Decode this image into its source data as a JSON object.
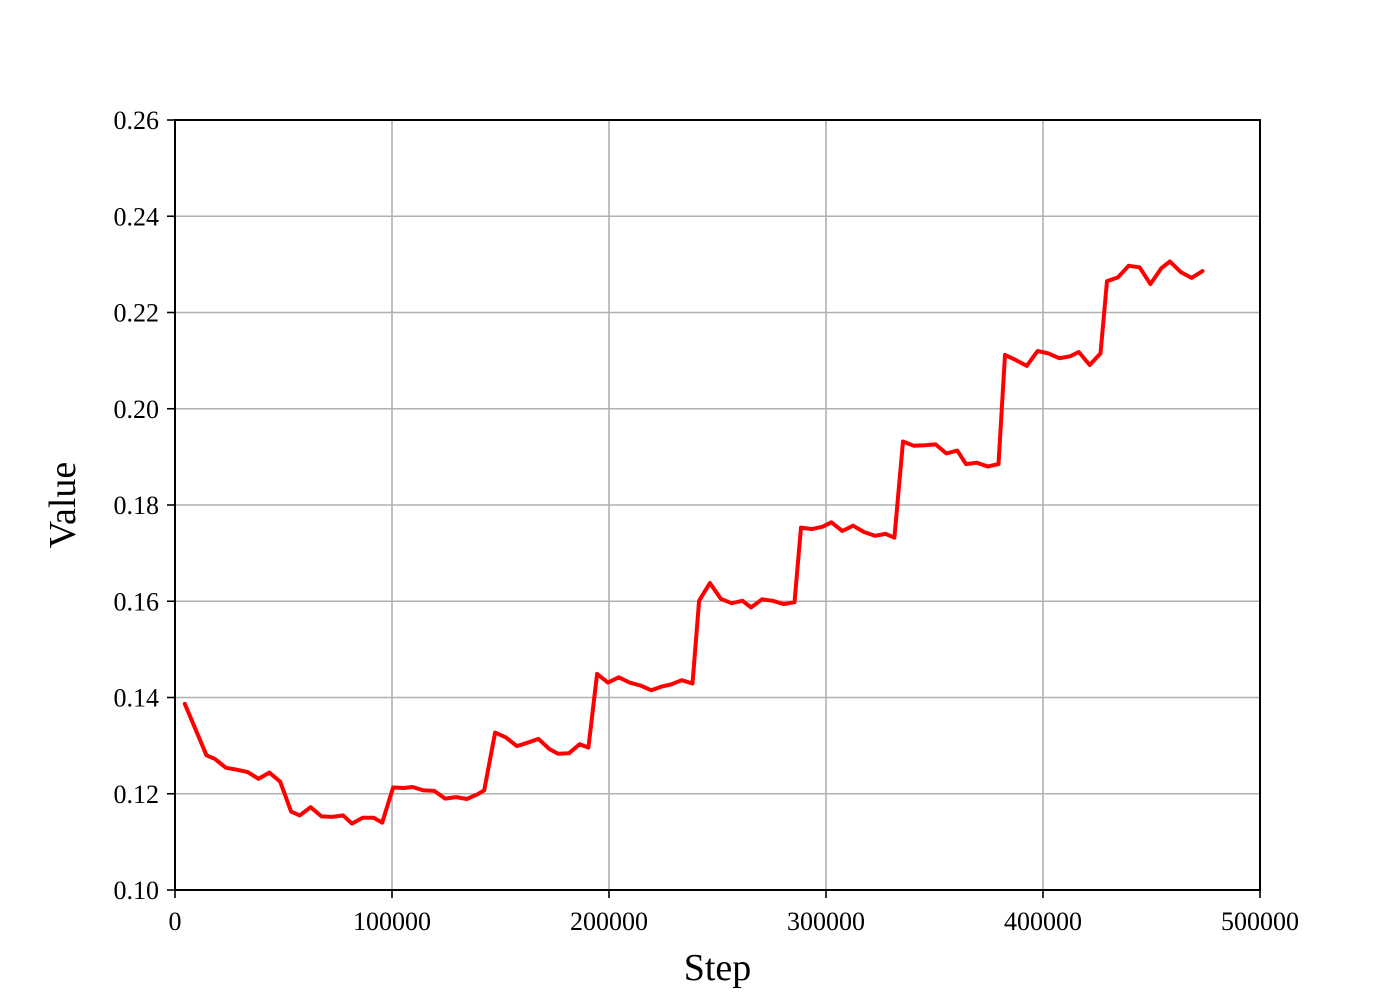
{
  "chart_data": {
    "type": "line",
    "title": "",
    "xlabel": "Step",
    "ylabel": "Value",
    "xlim": [
      0,
      500000
    ],
    "ylim": [
      0.1,
      0.26
    ],
    "xticks": [
      0,
      100000,
      200000,
      300000,
      400000,
      500000
    ],
    "yticks": [
      0.1,
      0.12,
      0.14,
      0.16,
      0.18,
      0.2,
      0.22,
      0.24,
      0.26
    ],
    "xtick_labels": [
      "0",
      "100000",
      "200000",
      "300000",
      "400000",
      "500000"
    ],
    "ytick_labels": [
      "0.10",
      "0.12",
      "0.14",
      "0.16",
      "0.18",
      "0.20",
      "0.22",
      "0.24",
      "0.26"
    ],
    "grid": true,
    "series": [
      {
        "color": "#ff0000",
        "x": [
          4500,
          14500,
          18500,
          23500,
          28500,
          33500,
          38500,
          43500,
          48500,
          53500,
          57500,
          62500,
          67500,
          72500,
          77500,
          81500,
          86500,
          91500,
          95500,
          100500,
          105500,
          109500,
          114500,
          119500,
          124500,
          129500,
          134500,
          139500,
          142500,
          147500,
          152500,
          157500,
          162500,
          167500,
          172500,
          176500,
          181500,
          186500,
          190500,
          194500,
          199500,
          204500,
          209500,
          214500,
          219500,
          224500,
          228500,
          233500,
          238500,
          241500,
          246500,
          251500,
          256500,
          261500,
          265500,
          270500,
          275500,
          280500,
          285500,
          288500,
          293500,
          298500,
          302500,
          307500,
          312500,
          317500,
          322500,
          327500,
          331500,
          335500,
          340500,
          345500,
          350500,
          355500,
          360500,
          364500,
          369500,
          374500,
          379500,
          382500,
          387500,
          392500,
          397500,
          402500,
          407500,
          412500,
          416500,
          421500,
          426500,
          429500,
          434500,
          439500,
          444500,
          449500,
          454500,
          458500,
          463500,
          468500,
          473500
        ],
        "y": [
          0.1387,
          0.128,
          0.1272,
          0.1254,
          0.125,
          0.1245,
          0.1231,
          0.1244,
          0.1225,
          0.1163,
          0.1155,
          0.1172,
          0.1153,
          0.1152,
          0.1155,
          0.1138,
          0.115,
          0.115,
          0.114,
          0.1213,
          0.1212,
          0.1214,
          0.1207,
          0.1206,
          0.119,
          0.1193,
          0.1189,
          0.1199,
          0.1207,
          0.1327,
          0.1317,
          0.1299,
          0.1306,
          0.1314,
          0.1293,
          0.1283,
          0.1284,
          0.1303,
          0.1296,
          0.1449,
          0.1431,
          0.1442,
          0.1431,
          0.1425,
          0.1415,
          0.1423,
          0.1427,
          0.1436,
          0.1429,
          0.1601,
          0.1638,
          0.1605,
          0.1596,
          0.1601,
          0.1587,
          0.1604,
          0.1601,
          0.1594,
          0.1598,
          0.1753,
          0.175,
          0.1755,
          0.1764,
          0.1746,
          0.1757,
          0.1744,
          0.1736,
          0.174,
          0.1732,
          0.1932,
          0.1923,
          0.1924,
          0.1926,
          0.1907,
          0.1913,
          0.1885,
          0.1888,
          0.188,
          0.1885,
          0.2112,
          0.2101,
          0.2089,
          0.212,
          0.2115,
          0.2105,
          0.2109,
          0.2118,
          0.2091,
          0.2115,
          0.2265,
          0.2273,
          0.2297,
          0.2294,
          0.2259,
          0.2292,
          0.2306,
          0.2284,
          0.2272,
          0.2286
        ]
      }
    ]
  }
}
